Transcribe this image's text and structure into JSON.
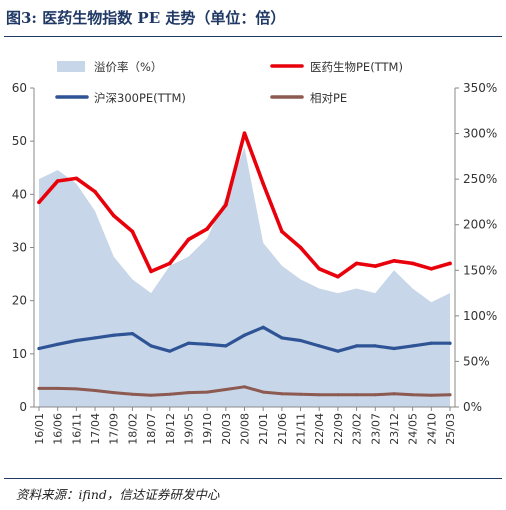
{
  "title": "图3: 医药生物指数 PE 走势（单位：倍）",
  "source": "资料来源：ifind，信达证券研发中心",
  "chart_data": {
    "type": "line",
    "x": [
      "16/01",
      "16/06",
      "16/11",
      "17/04",
      "17/09",
      "18/02",
      "18/07",
      "18/12",
      "19/05",
      "19/10",
      "20/03",
      "20/08",
      "21/01",
      "21/06",
      "21/11",
      "22/04",
      "22/09",
      "23/02",
      "23/07",
      "23/12",
      "24/05",
      "24/10",
      "25/03"
    ],
    "ylim": [
      0,
      60
    ],
    "y2lim": [
      0,
      350
    ],
    "y_ticks": [
      "0",
      "10",
      "20",
      "30",
      "40",
      "50",
      "60"
    ],
    "y2_ticks": [
      "0%",
      "50%",
      "100%",
      "150%",
      "200%",
      "250%",
      "300%",
      "350%"
    ],
    "legend": {
      "premium": "溢价率（%）",
      "pharma": "医药生物PE(TTM)",
      "hs300": "沪深300PE(TTM)",
      "relative": "相对PE"
    },
    "colors": {
      "premium": "#c7d6e8",
      "pharma": "#e8000b",
      "hs300": "#2f5496",
      "relative": "#8c5a50"
    },
    "series": [
      {
        "name": "医药生物PE(TTM)",
        "axis": "left",
        "values": [
          38.5,
          42.5,
          43.0,
          40.5,
          36.0,
          33.0,
          25.5,
          27.0,
          31.5,
          33.5,
          38.0,
          51.5,
          42.0,
          33.0,
          30.0,
          26.0,
          24.5,
          27.0,
          26.5,
          27.5,
          27.0,
          26.0,
          27.0
        ]
      },
      {
        "name": "沪深300PE(TTM)",
        "axis": "left",
        "values": [
          11.0,
          11.8,
          12.5,
          13.0,
          13.5,
          13.8,
          11.5,
          10.5,
          12.0,
          11.8,
          11.5,
          13.5,
          15.0,
          13.0,
          12.5,
          11.5,
          10.5,
          11.5,
          11.5,
          11.0,
          11.5,
          12.0,
          12.0
        ]
      },
      {
        "name": "相对PE",
        "axis": "left",
        "values": [
          3.5,
          3.5,
          3.4,
          3.1,
          2.7,
          2.4,
          2.2,
          2.4,
          2.7,
          2.8,
          3.3,
          3.8,
          2.8,
          2.5,
          2.4,
          2.3,
          2.3,
          2.3,
          2.3,
          2.5,
          2.3,
          2.2,
          2.3
        ]
      },
      {
        "name": "溢价率（%）",
        "axis": "right",
        "values": [
          250,
          260,
          245,
          215,
          165,
          140,
          125,
          155,
          165,
          185,
          230,
          285,
          180,
          155,
          140,
          130,
          125,
          130,
          125,
          150,
          130,
          115,
          125
        ]
      }
    ]
  }
}
